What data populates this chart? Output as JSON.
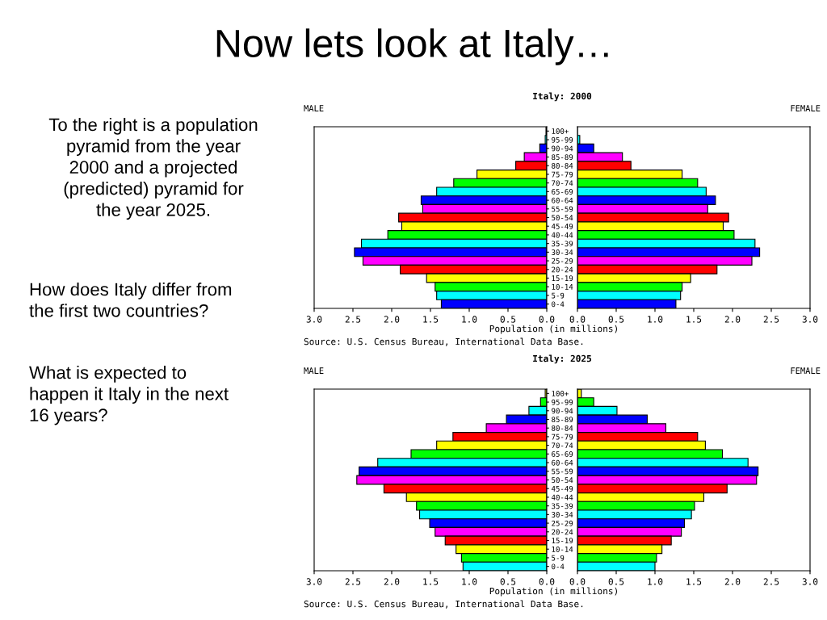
{
  "chart_data": [
    {
      "type": "other",
      "title": "Now lets look at Italy…",
      "annotations": [
        "To the right is a population\npyramid from the year\n2000 and a projected\n(predicted) pyramid for\nthe year 2025.",
        "How does Italy differ from\nthe first two countries?",
        "What is expected to\nhappen it Italy in the next\n16 years?"
      ]
    },
    {
      "type": "bar",
      "orientation": "horizontal",
      "title": "Italy: 2000",
      "subtitle": "MALE",
      "xlabel": "Population (in millions)",
      "annotations": [
        "Source: U.S. Census Bureau, International Data Base."
      ],
      "categories": [
        "100+",
        "95-99",
        "90-94",
        "85-89",
        "80-84",
        "75-79",
        "70-74",
        "65-69",
        "60-64",
        "55-59",
        "50-54",
        "45-49",
        "40-44",
        "35-39",
        "30-34",
        "25-29",
        "20-24",
        "15-19",
        "10-14",
        "5-9",
        "0-4"
      ],
      "values": [
        0.01,
        0.02,
        0.09,
        0.29,
        0.4,
        0.9,
        1.2,
        1.42,
        1.62,
        1.6,
        1.91,
        1.87,
        2.05,
        2.39,
        2.48,
        2.37,
        1.89,
        1.55,
        1.44,
        1.42,
        1.36
      ],
      "colors": [
        "#00ff00",
        "#00ffff",
        "#0000ff",
        "#ff00ff",
        "#ff0000",
        "#ffff00",
        "#00ff00",
        "#00ffff",
        "#0000ff",
        "#ff00ff",
        "#ff0000",
        "#ffff00",
        "#00ff00",
        "#00ffff",
        "#0000ff",
        "#ff00ff",
        "#ff0000",
        "#ffff00",
        "#00ff00",
        "#00ffff",
        "#0000ff"
      ],
      "xlim": [
        3,
        0
      ],
      "xticks": [
        {
          "value": 3,
          "label": "3.0"
        },
        {
          "value": 2.5,
          "label": "2.5"
        },
        {
          "value": 2,
          "label": "2.0"
        },
        {
          "value": 1.5,
          "label": "1.5"
        },
        {
          "value": 1,
          "label": "1.0"
        },
        {
          "value": 0.5,
          "label": "0.5"
        },
        {
          "value": 0,
          "label": "0.0"
        }
      ],
      "grid": false,
      "legend": false
    },
    {
      "type": "bar",
      "orientation": "horizontal",
      "subtitle": "FEMALE",
      "tick_labels": "x",
      "values": [
        0,
        0.03,
        0.21,
        0.58,
        0.69,
        1.35,
        1.55,
        1.66,
        1.78,
        1.68,
        1.95,
        1.88,
        2.02,
        2.29,
        2.35,
        2.25,
        1.8,
        1.46,
        1.35,
        1.33,
        1.27
      ],
      "colors": [
        "#00ff00",
        "#00ffff",
        "#0000ff",
        "#ff00ff",
        "#ff0000",
        "#ffff00",
        "#00ff00",
        "#00ffff",
        "#0000ff",
        "#ff00ff",
        "#ff0000",
        "#ffff00",
        "#00ff00",
        "#00ffff",
        "#0000ff",
        "#ff00ff",
        "#ff0000",
        "#ffff00",
        "#00ff00",
        "#00ffff",
        "#0000ff"
      ],
      "xlim": [
        0,
        3
      ],
      "xticks": [
        {
          "value": 0,
          "label": "0.0"
        },
        {
          "value": 0.5,
          "label": "0.5"
        },
        {
          "value": 1,
          "label": "1.0"
        },
        {
          "value": 1.5,
          "label": "1.5"
        },
        {
          "value": 2,
          "label": "2.0"
        },
        {
          "value": 2.5,
          "label": "2.5"
        },
        {
          "value": 3,
          "label": "3.0"
        }
      ],
      "grid": false,
      "legend": false
    },
    {
      "type": "bar",
      "orientation": "horizontal",
      "title": "Italy: 2025",
      "subtitle": "MALE",
      "xlabel": "Population (in millions)",
      "annotations": [
        "Source: U.S. Census Bureau, International Data Base."
      ],
      "categories": [
        "100+",
        "95-99",
        "90-94",
        "85-89",
        "80-84",
        "75-79",
        "70-74",
        "65-69",
        "60-64",
        "55-59",
        "50-54",
        "45-49",
        "40-44",
        "35-39",
        "30-34",
        "25-29",
        "20-24",
        "15-19",
        "10-14",
        "5-9",
        "0-4"
      ],
      "values": [
        0.02,
        0.08,
        0.23,
        0.52,
        0.78,
        1.21,
        1.42,
        1.75,
        2.18,
        2.42,
        2.45,
        2.1,
        1.81,
        1.68,
        1.64,
        1.51,
        1.44,
        1.31,
        1.17,
        1.1,
        1.08
      ],
      "colors": [
        "#ffff00",
        "#00ff00",
        "#00ffff",
        "#0000ff",
        "#ff00ff",
        "#ff0000",
        "#ffff00",
        "#00ff00",
        "#00ffff",
        "#0000ff",
        "#ff00ff",
        "#ff0000",
        "#ffff00",
        "#00ff00",
        "#00ffff",
        "#0000ff",
        "#ff00ff",
        "#ff0000",
        "#ffff00",
        "#00ff00",
        "#00ffff"
      ],
      "xlim": [
        3,
        0
      ],
      "xticks": [
        {
          "value": 3,
          "label": "3.0"
        },
        {
          "value": 2.5,
          "label": "2.5"
        },
        {
          "value": 2,
          "label": "2.0"
        },
        {
          "value": 1.5,
          "label": "1.5"
        },
        {
          "value": 1,
          "label": "1.0"
        },
        {
          "value": 0.5,
          "label": "0.5"
        },
        {
          "value": 0,
          "label": "0.0"
        }
      ],
      "grid": false,
      "legend": false
    },
    {
      "type": "bar",
      "orientation": "horizontal",
      "subtitle": "FEMALE",
      "tick_labels": "x",
      "values": [
        0.05,
        0.21,
        0.51,
        0.9,
        1.14,
        1.55,
        1.65,
        1.87,
        2.2,
        2.33,
        2.31,
        1.93,
        1.63,
        1.51,
        1.47,
        1.38,
        1.34,
        1.21,
        1.09,
        1.02,
        1.0
      ],
      "colors": [
        "#ffff00",
        "#00ff00",
        "#00ffff",
        "#0000ff",
        "#ff00ff",
        "#ff0000",
        "#ffff00",
        "#00ff00",
        "#00ffff",
        "#0000ff",
        "#ff00ff",
        "#ff0000",
        "#ffff00",
        "#00ff00",
        "#00ffff",
        "#0000ff",
        "#ff00ff",
        "#ff0000",
        "#ffff00",
        "#00ff00",
        "#00ffff"
      ],
      "xlim": [
        0,
        3
      ],
      "xticks": [
        {
          "value": 0,
          "label": "0.0"
        },
        {
          "value": 0.5,
          "label": "0.5"
        },
        {
          "value": 1,
          "label": "1.0"
        },
        {
          "value": 1.5,
          "label": "1.5"
        },
        {
          "value": 2,
          "label": "2.0"
        },
        {
          "value": 2.5,
          "label": "2.5"
        },
        {
          "value": 3,
          "label": "3.0"
        }
      ],
      "grid": false,
      "legend": false
    }
  ]
}
